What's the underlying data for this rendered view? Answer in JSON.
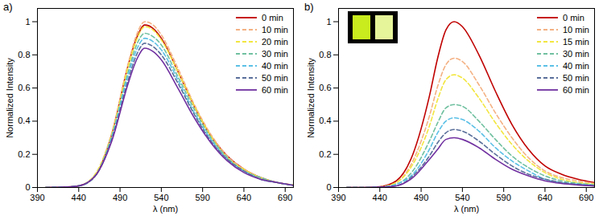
{
  "chart_data": [
    {
      "type": "line",
      "title": "a)",
      "xlabel": "λ (nm)",
      "ylabel": "Normalized Intensity",
      "x": [
        400,
        420,
        440,
        460,
        480,
        500,
        510,
        520,
        530,
        540,
        560,
        580,
        600,
        620,
        640,
        660,
        680,
        700
      ],
      "xlim": [
        390,
        700
      ],
      "xticks": [
        390,
        440,
        490,
        540,
        590,
        640,
        690
      ],
      "ylim": [
        0,
        1.08
      ],
      "yticks": [
        0,
        0.2,
        0.4,
        0.6,
        0.8,
        1
      ],
      "legend": "top-right",
      "series": [
        {
          "name": "0 min",
          "color": "#c00000",
          "line_style": "solid",
          "values": [
            0,
            0.002,
            0.01,
            0.07,
            0.32,
            0.74,
            0.9,
            0.98,
            0.96,
            0.9,
            0.7,
            0.49,
            0.31,
            0.19,
            0.11,
            0.06,
            0.03,
            0.015
          ]
        },
        {
          "name": "10 min",
          "color": "#f4b183",
          "line_style": "dashed",
          "values": [
            0,
            0.002,
            0.01,
            0.08,
            0.33,
            0.75,
            0.92,
            1.0,
            0.98,
            0.92,
            0.72,
            0.5,
            0.32,
            0.19,
            0.11,
            0.06,
            0.03,
            0.015
          ]
        },
        {
          "name": "20 min",
          "color": "#f2e640",
          "line_style": "dashed",
          "values": [
            0,
            0.002,
            0.01,
            0.08,
            0.32,
            0.73,
            0.89,
            0.97,
            0.95,
            0.89,
            0.7,
            0.49,
            0.31,
            0.18,
            0.11,
            0.06,
            0.03,
            0.015
          ]
        },
        {
          "name": "30 min",
          "color": "#70c0a0",
          "line_style": "dashed",
          "values": [
            0,
            0.002,
            0.01,
            0.07,
            0.31,
            0.7,
            0.86,
            0.93,
            0.91,
            0.86,
            0.67,
            0.47,
            0.3,
            0.18,
            0.1,
            0.06,
            0.03,
            0.014
          ]
        },
        {
          "name": "40 min",
          "color": "#5bc0e6",
          "line_style": "dashed",
          "values": [
            0,
            0.002,
            0.01,
            0.07,
            0.3,
            0.68,
            0.83,
            0.9,
            0.88,
            0.83,
            0.65,
            0.45,
            0.29,
            0.17,
            0.1,
            0.05,
            0.03,
            0.013
          ]
        },
        {
          "name": "50 min",
          "color": "#5a6f9a",
          "line_style": "dashed",
          "values": [
            0,
            0.002,
            0.01,
            0.07,
            0.29,
            0.65,
            0.8,
            0.87,
            0.85,
            0.8,
            0.63,
            0.44,
            0.28,
            0.17,
            0.1,
            0.05,
            0.03,
            0.013
          ]
        },
        {
          "name": "60 min",
          "color": "#7030a0",
          "line_style": "solid",
          "values": [
            0,
            0.002,
            0.01,
            0.07,
            0.28,
            0.63,
            0.77,
            0.84,
            0.82,
            0.77,
            0.6,
            0.42,
            0.27,
            0.16,
            0.09,
            0.05,
            0.03,
            0.013
          ]
        }
      ]
    },
    {
      "type": "line",
      "title": "b)",
      "xlabel": "λ (nm)",
      "ylabel": "Normalized Intensity",
      "x": [
        400,
        420,
        440,
        460,
        480,
        500,
        510,
        520,
        530,
        540,
        560,
        580,
        600,
        620,
        640,
        660,
        680,
        700
      ],
      "xlim": [
        390,
        700
      ],
      "xticks": [
        390,
        440,
        490,
        540,
        590,
        640,
        690
      ],
      "ylim": [
        0,
        1.08
      ],
      "yticks": [
        0,
        0.2,
        0.4,
        0.6,
        0.8,
        1
      ],
      "legend": "top-right",
      "series": [
        {
          "name": "0 min",
          "color": "#c00000",
          "line_style": "solid",
          "values": [
            0,
            0,
            0.005,
            0.04,
            0.2,
            0.55,
            0.78,
            0.95,
            1.0,
            0.97,
            0.8,
            0.58,
            0.38,
            0.23,
            0.13,
            0.08,
            0.05,
            0.03
          ]
        },
        {
          "name": "10 min",
          "color": "#f4b183",
          "line_style": "dashed",
          "values": [
            0,
            0,
            0.004,
            0.03,
            0.16,
            0.43,
            0.61,
            0.74,
            0.78,
            0.76,
            0.62,
            0.45,
            0.3,
            0.18,
            0.1,
            0.06,
            0.04,
            0.023
          ]
        },
        {
          "name": "15 min",
          "color": "#f2e640",
          "line_style": "dashed",
          "values": [
            0,
            0,
            0.003,
            0.03,
            0.14,
            0.37,
            0.53,
            0.65,
            0.68,
            0.66,
            0.54,
            0.39,
            0.26,
            0.16,
            0.09,
            0.05,
            0.03,
            0.02
          ]
        },
        {
          "name": "30 min",
          "color": "#70c0a0",
          "line_style": "dashed",
          "values": [
            0,
            0,
            0.003,
            0.02,
            0.1,
            0.28,
            0.39,
            0.48,
            0.5,
            0.49,
            0.4,
            0.29,
            0.19,
            0.12,
            0.07,
            0.04,
            0.025,
            0.015
          ]
        },
        {
          "name": "40 min",
          "color": "#5bc0e6",
          "line_style": "dashed",
          "values": [
            0,
            0,
            0.002,
            0.02,
            0.08,
            0.23,
            0.33,
            0.4,
            0.42,
            0.41,
            0.34,
            0.24,
            0.16,
            0.1,
            0.05,
            0.03,
            0.02,
            0.013
          ]
        },
        {
          "name": "50 min",
          "color": "#5a6f9a",
          "line_style": "dashed",
          "values": [
            0,
            0,
            0.002,
            0.01,
            0.07,
            0.19,
            0.27,
            0.33,
            0.35,
            0.34,
            0.28,
            0.2,
            0.13,
            0.08,
            0.05,
            0.03,
            0.018,
            0.01
          ]
        },
        {
          "name": "60 min",
          "color": "#7030a0",
          "line_style": "solid",
          "values": [
            0,
            0,
            0.002,
            0.01,
            0.06,
            0.17,
            0.23,
            0.29,
            0.3,
            0.29,
            0.24,
            0.17,
            0.11,
            0.07,
            0.04,
            0.024,
            0.015,
            0.009
          ]
        }
      ]
    }
  ]
}
